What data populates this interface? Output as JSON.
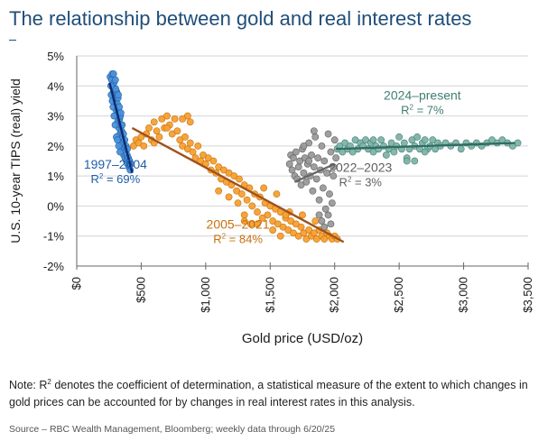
{
  "title": "The relationship between gold and real interest rates",
  "note": {
    "prefix": "Note: R",
    "superscript": "2",
    "text": " denotes the coefficient of determination, a statistical measure of the extent to which changes in gold prices can be accounted for by changes in real interest rates in this analysis."
  },
  "source": "Source – RBC Wealth Management, Bloomberg; weekly data through 6/20/25",
  "chart_data": {
    "type": "scatter",
    "xlabel": "Gold price (USD/oz)",
    "ylabel": "U.S. 10-year TIPS (real) yield",
    "xlim": [
      0,
      3500
    ],
    "ylim": [
      -2,
      5
    ],
    "xticks": [
      {
        "value": 0,
        "label": "$0"
      },
      {
        "value": 500,
        "label": "$500"
      },
      {
        "value": 1000,
        "label": "$1,000"
      },
      {
        "value": 1500,
        "label": "$1,500"
      },
      {
        "value": 2000,
        "label": "$2,000"
      },
      {
        "value": 2500,
        "label": "$2,500"
      },
      {
        "value": 3000,
        "label": "$3,000"
      },
      {
        "value": 3500,
        "label": "$3,500"
      }
    ],
    "yticks": [
      {
        "value": 5,
        "label": "5%"
      },
      {
        "value": 4,
        "label": "4%"
      },
      {
        "value": 3,
        "label": "3%"
      },
      {
        "value": 2,
        "label": "2%"
      },
      {
        "value": 1,
        "label": "1%"
      },
      {
        "value": 0,
        "label": "0%"
      },
      {
        "value": -1,
        "label": "-1%"
      },
      {
        "value": -2,
        "label": "-2%"
      }
    ],
    "grid": true,
    "series": [
      {
        "name": "1997–2004",
        "r2_prefix": "R",
        "r2_sup": "2",
        "r2_value": " = 69%",
        "color": "#4a90d9",
        "edge": "#1f5fa8",
        "trend_color": "#0d2a6e",
        "trend": {
          "x": [
            255,
            430
          ],
          "y": [
            4.1,
            1.1
          ]
        },
        "points": [
          [
            260,
            4.3
          ],
          [
            270,
            4.2
          ],
          [
            275,
            4.4
          ],
          [
            280,
            4.0
          ],
          [
            285,
            3.8
          ],
          [
            288,
            4.1
          ],
          [
            292,
            3.6
          ],
          [
            295,
            3.9
          ],
          [
            300,
            3.5
          ],
          [
            305,
            3.2
          ],
          [
            310,
            3.8
          ],
          [
            312,
            3.0
          ],
          [
            315,
            3.4
          ],
          [
            318,
            2.8
          ],
          [
            320,
            3.6
          ],
          [
            325,
            3.1
          ],
          [
            328,
            2.6
          ],
          [
            330,
            3.3
          ],
          [
            332,
            2.9
          ],
          [
            335,
            2.4
          ],
          [
            338,
            3.0
          ],
          [
            340,
            2.7
          ],
          [
            345,
            2.2
          ],
          [
            348,
            2.5
          ],
          [
            350,
            2.0
          ],
          [
            355,
            2.3
          ],
          [
            358,
            1.9
          ],
          [
            360,
            2.1
          ],
          [
            365,
            1.7
          ],
          [
            370,
            1.9
          ],
          [
            375,
            1.6
          ],
          [
            380,
            1.8
          ],
          [
            385,
            1.5
          ],
          [
            390,
            1.7
          ],
          [
            395,
            1.4
          ],
          [
            400,
            1.6
          ],
          [
            405,
            1.3
          ],
          [
            410,
            1.5
          ],
          [
            415,
            1.2
          ],
          [
            420,
            1.4
          ],
          [
            282,
            3.3
          ],
          [
            298,
            2.7
          ],
          [
            308,
            2.3
          ],
          [
            268,
            3.7
          ],
          [
            276,
            3.5
          ],
          [
            290,
            3.0
          ],
          [
            302,
            3.9
          ],
          [
            316,
            2.2
          ],
          [
            326,
            2.0
          ],
          [
            336,
            1.8
          ],
          [
            265,
            4.0
          ],
          [
            285,
            4.4
          ],
          [
            300,
            4.2
          ],
          [
            322,
            3.7
          ],
          [
            342,
            3.1
          ],
          [
            352,
            2.7
          ],
          [
            362,
            2.4
          ],
          [
            372,
            2.2
          ],
          [
            382,
            2.0
          ],
          [
            392,
            1.9
          ]
        ]
      },
      {
        "name": "2005–2021",
        "r2_prefix": "R",
        "r2_sup": "2",
        "r2_value": " = 84%",
        "color": "#f5a030",
        "edge": "#c96f0c",
        "trend_color": "#a0521b",
        "trend": {
          "x": [
            430,
            2070
          ],
          "y": [
            2.6,
            -1.2
          ]
        },
        "points": [
          [
            440,
            2.0
          ],
          [
            460,
            2.2
          ],
          [
            480,
            2.1
          ],
          [
            500,
            2.3
          ],
          [
            520,
            2.0
          ],
          [
            540,
            2.4
          ],
          [
            560,
            2.6
          ],
          [
            580,
            2.2
          ],
          [
            600,
            2.8
          ],
          [
            620,
            2.5
          ],
          [
            640,
            2.3
          ],
          [
            660,
            2.9
          ],
          [
            680,
            2.6
          ],
          [
            700,
            3.0
          ],
          [
            720,
            2.7
          ],
          [
            740,
            2.4
          ],
          [
            760,
            2.9
          ],
          [
            780,
            2.5
          ],
          [
            800,
            2.2
          ],
          [
            820,
            2.0
          ],
          [
            840,
            2.3
          ],
          [
            860,
            1.9
          ],
          [
            880,
            2.1
          ],
          [
            900,
            1.8
          ],
          [
            920,
            1.6
          ],
          [
            940,
            2.0
          ],
          [
            960,
            1.5
          ],
          [
            980,
            1.7
          ],
          [
            1000,
            1.4
          ],
          [
            1020,
            1.6
          ],
          [
            1040,
            1.2
          ],
          [
            1060,
            1.5
          ],
          [
            1080,
            1.1
          ],
          [
            1100,
            1.3
          ],
          [
            1120,
            0.9
          ],
          [
            1140,
            1.2
          ],
          [
            1160,
            0.8
          ],
          [
            1180,
            1.1
          ],
          [
            1200,
            0.7
          ],
          [
            1220,
            1.0
          ],
          [
            1240,
            0.5
          ],
          [
            1260,
            0.9
          ],
          [
            1280,
            0.4
          ],
          [
            1300,
            0.7
          ],
          [
            1320,
            0.2
          ],
          [
            1340,
            0.6
          ],
          [
            1360,
            0.0
          ],
          [
            1380,
            0.4
          ],
          [
            1400,
            -0.2
          ],
          [
            1420,
            0.3
          ],
          [
            1440,
            -0.4
          ],
          [
            1460,
            0.1
          ],
          [
            1480,
            -0.3
          ],
          [
            1500,
            0.0
          ],
          [
            1520,
            -0.5
          ],
          [
            1540,
            -0.1
          ],
          [
            1560,
            -0.6
          ],
          [
            1580,
            -0.2
          ],
          [
            1600,
            -0.7
          ],
          [
            1620,
            -0.4
          ],
          [
            1640,
            -0.8
          ],
          [
            1660,
            -0.5
          ],
          [
            1680,
            -0.9
          ],
          [
            1700,
            -0.6
          ],
          [
            1720,
            -1.0
          ],
          [
            1740,
            -0.7
          ],
          [
            1760,
            -0.9
          ],
          [
            1780,
            -1.1
          ],
          [
            1800,
            -0.8
          ],
          [
            1820,
            -1.0
          ],
          [
            1840,
            -0.9
          ],
          [
            1860,
            -1.1
          ],
          [
            1880,
            -0.8
          ],
          [
            1900,
            -1.0
          ],
          [
            1920,
            -1.1
          ],
          [
            1940,
            -0.9
          ],
          [
            1960,
            -1.0
          ],
          [
            1980,
            -1.1
          ],
          [
            2000,
            -1.0
          ],
          [
            2020,
            -1.1
          ],
          [
            860,
            3.0
          ],
          [
            820,
            2.9
          ],
          [
            880,
            2.8
          ],
          [
            700,
            2.6
          ],
          [
            600,
            2.1
          ],
          [
            1100,
            0.5
          ],
          [
            1250,
            0.1
          ],
          [
            1300,
            -0.3
          ],
          [
            1180,
            0.3
          ],
          [
            1350,
            -0.6
          ],
          [
            1450,
            0.6
          ],
          [
            1550,
            0.4
          ],
          [
            1650,
            -0.2
          ],
          [
            1750,
            -0.3
          ],
          [
            1850,
            -0.5
          ],
          [
            1620,
            -0.3
          ],
          [
            1400,
            -0.6
          ],
          [
            1300,
            -0.5
          ],
          [
            1520,
            -0.8
          ],
          [
            1580,
            -1.0
          ]
        ]
      },
      {
        "name": "2022–2023",
        "r2_prefix": "R",
        "r2_sup": "2",
        "r2_value": " = 3%",
        "color": "#9a9a9a",
        "edge": "#5f5f5f",
        "trend_color": "#666666",
        "trend": {
          "x": [
            1690,
            2000
          ],
          "y": [
            0.8,
            1.4
          ]
        },
        "points": [
          [
            1650,
            1.4
          ],
          [
            1660,
            1.7
          ],
          [
            1670,
            1.2
          ],
          [
            1680,
            1.6
          ],
          [
            1690,
            1.0
          ],
          [
            1700,
            1.8
          ],
          [
            1710,
            0.9
          ],
          [
            1720,
            1.3
          ],
          [
            1730,
            1.5
          ],
          [
            1740,
            0.7
          ],
          [
            1750,
            1.9
          ],
          [
            1760,
            1.1
          ],
          [
            1770,
            1.6
          ],
          [
            1780,
            0.8
          ],
          [
            1790,
            1.4
          ],
          [
            1800,
            2.1
          ],
          [
            1810,
            1.0
          ],
          [
            1820,
            1.7
          ],
          [
            1830,
            0.5
          ],
          [
            1840,
            1.3
          ],
          [
            1850,
            2.3
          ],
          [
            1860,
            0.9
          ],
          [
            1870,
            1.6
          ],
          [
            1880,
            0.2
          ],
          [
            1890,
            1.2
          ],
          [
            1900,
            2.0
          ],
          [
            1910,
            0.6
          ],
          [
            1920,
            1.5
          ],
          [
            1930,
            -0.1
          ],
          [
            1940,
            1.1
          ],
          [
            1950,
            2.4
          ],
          [
            1960,
            0.4
          ],
          [
            1970,
            1.8
          ],
          [
            1980,
            0.1
          ],
          [
            1990,
            1.3
          ],
          [
            2000,
            2.2
          ],
          [
            1840,
            2.5
          ],
          [
            1880,
            -0.3
          ],
          [
            1900,
            -0.5
          ],
          [
            1920,
            -0.7
          ],
          [
            1950,
            -0.3
          ],
          [
            1970,
            -0.6
          ],
          [
            1990,
            1.0
          ],
          [
            2010,
            1.6
          ],
          [
            1800,
            1.5
          ],
          [
            1760,
            2.0
          ]
        ]
      },
      {
        "name": "2024–present",
        "r2_prefix": "R",
        "r2_sup": "2",
        "r2_value": " = 7%",
        "color": "#7fb3a8",
        "edge": "#3f7e72",
        "trend_color": "#2f6e62",
        "trend": {
          "x": [
            2010,
            3400
          ],
          "y": [
            1.9,
            2.1
          ]
        },
        "points": [
          [
            2020,
            1.9
          ],
          [
            2040,
            2.0
          ],
          [
            2060,
            1.8
          ],
          [
            2080,
            2.1
          ],
          [
            2100,
            1.9
          ],
          [
            2120,
            2.0
          ],
          [
            2140,
            1.8
          ],
          [
            2160,
            2.2
          ],
          [
            2180,
            1.9
          ],
          [
            2200,
            2.1
          ],
          [
            2220,
            2.0
          ],
          [
            2240,
            2.2
          ],
          [
            2260,
            1.9
          ],
          [
            2280,
            2.1
          ],
          [
            2300,
            1.8
          ],
          [
            2320,
            2.0
          ],
          [
            2340,
            1.9
          ],
          [
            2360,
            2.2
          ],
          [
            2380,
            2.0
          ],
          [
            2400,
            1.7
          ],
          [
            2420,
            1.9
          ],
          [
            2440,
            2.1
          ],
          [
            2460,
            1.8
          ],
          [
            2480,
            2.0
          ],
          [
            2500,
            2.3
          ],
          [
            2520,
            1.9
          ],
          [
            2540,
            2.1
          ],
          [
            2560,
            1.6
          ],
          [
            2580,
            1.9
          ],
          [
            2600,
            2.2
          ],
          [
            2620,
            2.0
          ],
          [
            2640,
            2.3
          ],
          [
            2660,
            1.9
          ],
          [
            2680,
            2.1
          ],
          [
            2700,
            2.2
          ],
          [
            2720,
            1.9
          ],
          [
            2740,
            2.0
          ],
          [
            2760,
            2.2
          ],
          [
            2780,
            1.9
          ],
          [
            2800,
            2.1
          ],
          [
            2820,
            2.0
          ],
          [
            2860,
            2.1
          ],
          [
            2900,
            2.0
          ],
          [
            2940,
            2.1
          ],
          [
            2980,
            1.9
          ],
          [
            3020,
            2.1
          ],
          [
            3060,
            2.0
          ],
          [
            3100,
            2.1
          ],
          [
            3140,
            2.0
          ],
          [
            3180,
            2.1
          ],
          [
            3220,
            2.2
          ],
          [
            3260,
            2.1
          ],
          [
            3300,
            2.2
          ],
          [
            3340,
            2.1
          ],
          [
            3380,
            2.0
          ],
          [
            3420,
            2.1
          ],
          [
            2560,
            1.5
          ],
          [
            2620,
            1.5
          ],
          [
            2700,
            1.8
          ],
          [
            2300,
            2.2
          ]
        ]
      }
    ],
    "annotations": [
      {
        "series": 0,
        "x": 300,
        "y": 1.0
      },
      {
        "series": 1,
        "x": 1250,
        "y": -1.0
      },
      {
        "series": 2,
        "x": 2200,
        "y": 0.9
      },
      {
        "series": 3,
        "x": 2680,
        "y": 3.3
      }
    ]
  }
}
